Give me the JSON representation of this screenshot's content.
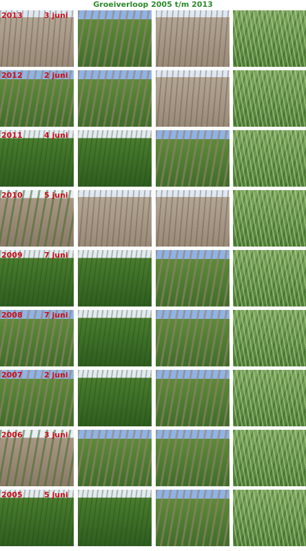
{
  "title": "Groeiverloop 2005 t/m 2013",
  "rows": [
    {
      "year": "2013",
      "date": "3 juni"
    },
    {
      "year": "2012",
      "date": "2 juni"
    },
    {
      "year": "2011",
      "date": "4 juni"
    },
    {
      "year": "2010",
      "date": "5 juni"
    },
    {
      "year": "2009",
      "date": "7 juni"
    },
    {
      "year": "2008",
      "date": "7 juni"
    },
    {
      "year": "2007",
      "date": "2 juni"
    },
    {
      "year": "2006",
      "date": "3 juni"
    },
    {
      "year": "2005",
      "date": "5 juni"
    }
  ]
}
